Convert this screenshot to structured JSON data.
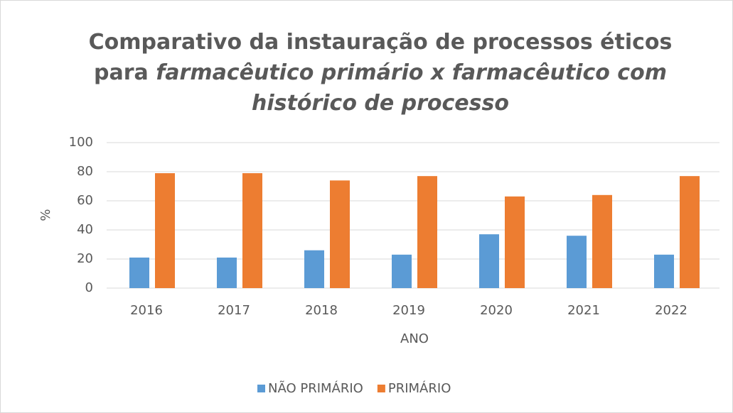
{
  "chart_data": {
    "type": "bar",
    "title_lines": [
      [
        {
          "text": "Comparativo  da instauração de processos éticos",
          "italic": false
        }
      ],
      [
        {
          "text": "para ",
          "italic": false
        },
        {
          "text": "farmacêutico primário x farmacêutico com",
          "italic": true
        }
      ],
      [
        {
          "text": "histórico de processo",
          "italic": true
        }
      ]
    ],
    "x_label": "ANO",
    "y_label": "%",
    "categories": [
      "2016",
      "2017",
      "2018",
      "2019",
      "2020",
      "2021",
      "2022"
    ],
    "series": [
      {
        "name": "NÃO PRIMÁRIO",
        "color": "#5b9bd5",
        "values": [
          21,
          21,
          26,
          23,
          37,
          36,
          23
        ]
      },
      {
        "name": "PRIMÁRIO",
        "color": "#ed7d31",
        "values": [
          79,
          79,
          74,
          77,
          63,
          64,
          77
        ]
      }
    ],
    "ylim": [
      0,
      100
    ],
    "yticks": [
      0,
      20,
      40,
      60,
      80,
      100
    ],
    "grid": true,
    "legend": "bottom"
  }
}
